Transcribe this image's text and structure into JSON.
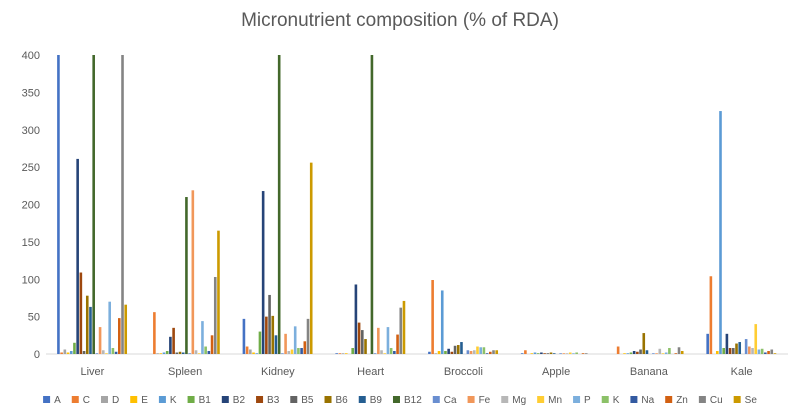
{
  "chart_data": {
    "type": "bar",
    "title": "Micronutrient composition (% of RDA)",
    "xlabel": "",
    "ylabel": "",
    "ylim": [
      0,
      400
    ],
    "yticks": [
      0,
      50,
      100,
      150,
      200,
      250,
      300,
      350,
      400
    ],
    "grid": false,
    "legend_position": "bottom",
    "categories": [
      "Liver",
      "Spleen",
      "Kidney",
      "Heart",
      "Broccoli",
      "Apple",
      "Banana",
      "Kale"
    ],
    "series": [
      {
        "name": "A",
        "color": "#4472C4",
        "values": [
          400,
          0,
          47,
          1,
          3,
          1,
          0,
          27
        ]
      },
      {
        "name": "C",
        "color": "#ED7D31",
        "values": [
          2,
          56,
          10,
          1,
          99,
          5,
          10,
          104
        ]
      },
      {
        "name": "D",
        "color": "#A5A5A5",
        "values": [
          6,
          1,
          6,
          1,
          1,
          0,
          0,
          0
        ]
      },
      {
        "name": "E",
        "color": "#FFC000",
        "values": [
          2,
          1,
          2,
          1,
          4,
          1,
          1,
          4
        ]
      },
      {
        "name": "K",
        "color": "#5B9BD5",
        "values": [
          4,
          2,
          1,
          0,
          85,
          2,
          1,
          325
        ]
      },
      {
        "name": "B1",
        "color": "#70AD47",
        "values": [
          15,
          4,
          30,
          8,
          4,
          1,
          2,
          8
        ]
      },
      {
        "name": "B2",
        "color": "#264478",
        "values": [
          261,
          23,
          218,
          93,
          7,
          2,
          4,
          27
        ]
      },
      {
        "name": "B3",
        "color": "#9E480E",
        "values": [
          109,
          35,
          50,
          42,
          3,
          1,
          3,
          8
        ]
      },
      {
        "name": "B5",
        "color": "#636363",
        "values": [
          4,
          2,
          79,
          32,
          11,
          1,
          6,
          8
        ]
      },
      {
        "name": "B6",
        "color": "#997300",
        "values": [
          78,
          3,
          51,
          20,
          12,
          2,
          28,
          14
        ]
      },
      {
        "name": "B9",
        "color": "#255E91",
        "values": [
          63,
          2,
          25,
          0,
          16,
          1,
          5,
          16
        ]
      },
      {
        "name": "B12",
        "color": "#43682B",
        "values": [
          400,
          210,
          400,
          400,
          0,
          0,
          0,
          0
        ]
      },
      {
        "name": "Ca",
        "color": "#698ED0",
        "values": [
          1,
          1,
          1,
          1,
          5,
          1,
          1,
          20
        ]
      },
      {
        "name": "Fe",
        "color": "#F1975A",
        "values": [
          36,
          219,
          27,
          35,
          4,
          1,
          1,
          10
        ]
      },
      {
        "name": "Mg",
        "color": "#B7B7B7",
        "values": [
          5,
          5,
          4,
          5,
          5,
          1,
          7,
          8
        ]
      },
      {
        "name": "Mn",
        "color": "#FFCD33",
        "values": [
          1,
          1,
          6,
          1,
          10,
          2,
          1,
          40
        ]
      },
      {
        "name": "P",
        "color": "#7CAFDD",
        "values": [
          70,
          44,
          37,
          36,
          9,
          1,
          2,
          6
        ]
      },
      {
        "name": "K",
        "color": "#8CC168",
        "values": [
          8,
          10,
          8,
          8,
          9,
          2,
          8,
          7
        ]
      },
      {
        "name": "Na",
        "color": "#335AA1",
        "values": [
          3,
          4,
          8,
          4,
          1,
          0,
          0,
          2
        ]
      },
      {
        "name": "Zn",
        "color": "#D26012",
        "values": [
          48,
          25,
          17,
          26,
          3,
          1,
          1,
          4
        ]
      },
      {
        "name": "Cu",
        "color": "#848484",
        "values": [
          400,
          103,
          47,
          62,
          5,
          1,
          9,
          6
        ]
      },
      {
        "name": "Se",
        "color": "#CC9A00",
        "values": [
          66,
          165,
          256,
          71,
          5,
          0,
          4,
          1
        ]
      }
    ]
  }
}
